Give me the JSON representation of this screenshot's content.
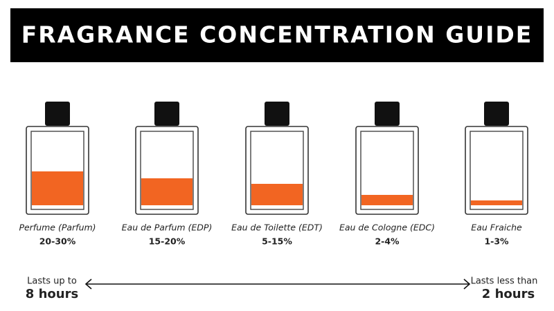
{
  "title": "FRAGRANCE CONCENTRATION GUIDE",
  "bottles": [
    {
      "name": "Perfume (Parfum)",
      "range": "20-30%"
    },
    {
      "name": "Eau de Parfum (EDP)",
      "range": "15-20%"
    },
    {
      "name": "Eau de Toilette (EDT)",
      "range": "5-15%"
    },
    {
      "name": "Eau de Cologne (EDC)",
      "range": "2-4%"
    },
    {
      "name": "Eau Fraiche",
      "range": "1-3%"
    }
  ],
  "scale": {
    "left": {
      "line1": "Lasts up to",
      "line2": "8 hours"
    },
    "right": {
      "line1": "Lasts less than",
      "line2": "2 hours"
    }
  }
}
